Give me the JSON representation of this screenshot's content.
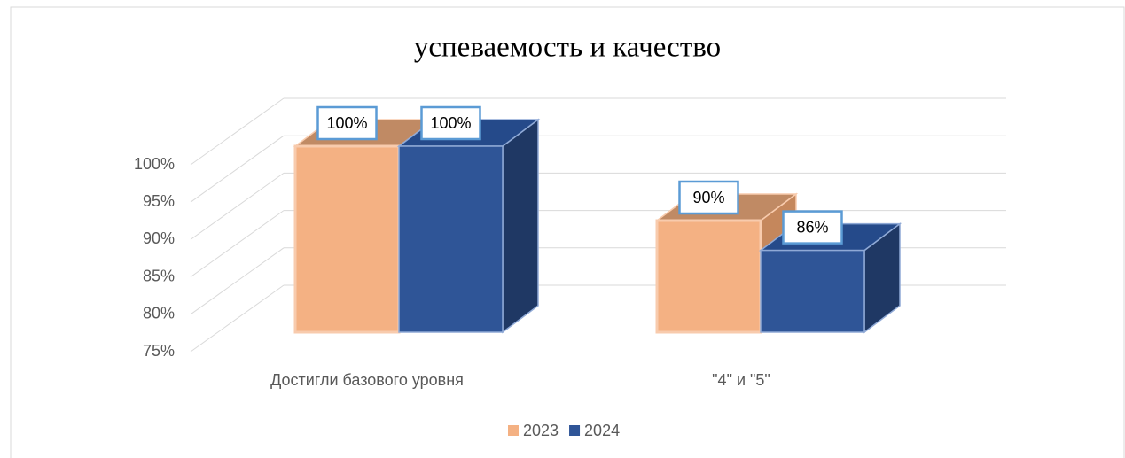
{
  "chart_data": {
    "type": "bar3d",
    "title": "успеваемость и качество",
    "categories": [
      "Достигли базового уровня",
      "\"4\" и \"5\""
    ],
    "series": [
      {
        "name": "2023",
        "color": "#f4b183",
        "values": [
          100,
          90
        ],
        "value_labels": [
          "100%",
          "90%"
        ]
      },
      {
        "name": "2024",
        "color": "#2f5597",
        "values": [
          100,
          86
        ],
        "value_labels": [
          "100%",
          "86%"
        ]
      }
    ],
    "ylim": [
      75,
      100
    ],
    "yticks": [
      {
        "value": 75,
        "label": "75%"
      },
      {
        "value": 80,
        "label": "80%"
      },
      {
        "value": 85,
        "label": "85%"
      },
      {
        "value": 90,
        "label": "90%"
      },
      {
        "value": 95,
        "label": "95%"
      },
      {
        "value": 100,
        "label": "100%"
      }
    ],
    "grid": true,
    "legend": "bottom"
  }
}
